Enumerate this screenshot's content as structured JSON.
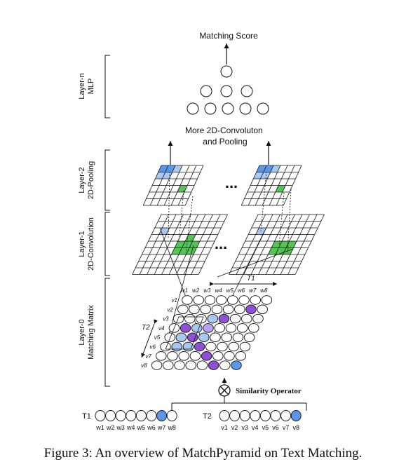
{
  "layers": [
    {
      "line1": "Layer-n",
      "line2": "MLP"
    },
    {
      "line1": "Layer-2",
      "line2": "2D-Pooling"
    },
    {
      "line1": "Layer-1",
      "line2": "2D-Convolution"
    },
    {
      "line1": "Layer-0",
      "line2": "Matching Matrix"
    }
  ],
  "output_label": "Matching Score",
  "pooling_label": {
    "line1": "More 2D-Convoluton",
    "line2": "and Pooling"
  },
  "ellipsis": "...",
  "matrix": {
    "cols": [
      "w1",
      "w2",
      "w3",
      "w4",
      "w5",
      "w6",
      "w7",
      "w8"
    ],
    "rows": [
      "v1",
      "v2",
      "v3",
      "v4",
      "v5",
      "v6",
      "v7",
      "v8"
    ],
    "t1_span": "T1",
    "t2_span": "T2"
  },
  "similarity_operator": "Similarity Operator",
  "texts": {
    "t1": {
      "label": "T1",
      "words": [
        "w1",
        "w2",
        "w3",
        "w4",
        "w5",
        "w6",
        "w7",
        "w8"
      ]
    },
    "t2": {
      "label": "T2",
      "words": [
        "v1",
        "v2",
        "v3",
        "v4",
        "v5",
        "v6",
        "v7",
        "v8"
      ]
    }
  },
  "caption": "Figure 3: An overview of MatchPyramid on Text Matching.",
  "colors": {
    "blue": "#5b97e8",
    "light_blue": "#a9c8f2",
    "green": "#55c457",
    "purple": "#8f4fd6",
    "line": "#111111"
  }
}
